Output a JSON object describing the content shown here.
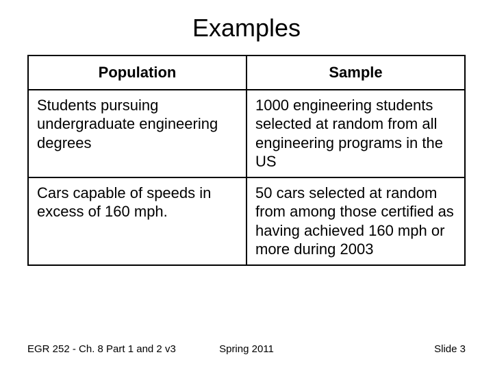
{
  "title": "Examples",
  "table": {
    "headers": {
      "col1": "Population",
      "col2": "Sample"
    },
    "rows": [
      {
        "population": "Students pursuing undergraduate engineering degrees",
        "sample": "1000 engineering students selected at random from all engineering programs in the US"
      },
      {
        "population": "Cars capable of speeds in excess of 160 mph.",
        "sample": "50 cars selected at random from among those certified as having achieved 160 mph or more during 2003"
      }
    ]
  },
  "footer": {
    "left": "EGR 252 - Ch. 8 Part 1 and 2 v3",
    "center": "Spring 2011",
    "right": "Slide  3"
  }
}
